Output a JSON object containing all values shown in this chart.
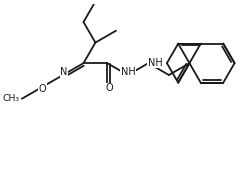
{
  "background_color": "#ffffff",
  "line_color": "#1a1a1a",
  "line_width": 1.3,
  "font_size": 7.0,
  "figsize": [
    2.48,
    1.69
  ],
  "dpi": 100,
  "xlim": [
    0.0,
    10.0
  ],
  "ylim": [
    0.0,
    6.8
  ]
}
